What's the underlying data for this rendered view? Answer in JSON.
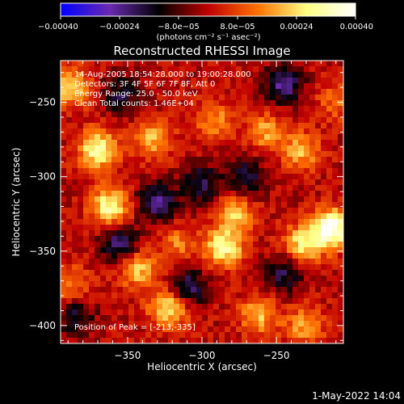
{
  "colorbar": {
    "ticks": [
      "−0.00040",
      "−0.00024",
      "−8.0e−05",
      "8.0e−05",
      "0.00024",
      "0.00040"
    ],
    "tick_values": [
      -0.0004,
      -0.00024,
      -8e-05,
      8e-05,
      0.00024,
      0.0004
    ],
    "range": [
      -0.0004,
      0.0004
    ],
    "unit_label": "(photons cm⁻² s⁻¹ asec⁻²)"
  },
  "chart_data": {
    "type": "heatmap",
    "title": "Reconstructed RHESSI Image",
    "xlabel": "Heliocentric X (arcsec)",
    "ylabel": "Heliocentric Y (arcsec)",
    "xlim": [
      -395,
      -205
    ],
    "ylim": [
      -412,
      -222
    ],
    "xticks": [
      -350,
      -300,
      -250
    ],
    "yticks": [
      -250,
      -300,
      -350,
      -400
    ],
    "xtick_labels": [
      "−350",
      "−300",
      "−250"
    ],
    "ytick_labels": [
      "−250",
      "−300",
      "−350",
      "−400"
    ],
    "annotations": [
      "14-Aug-2005 18:54:28.000  to 19:00:28.000",
      "Detectors: 3F 4F 5F 6F 7F 8F, Att 0",
      "Energy Range: 25.0 - 50.0 keV",
      "Clean     Total counts: 1.46E+04"
    ],
    "peak_text": "Position of Peak = [-213,-335]",
    "peak": [
      -213,
      -335
    ],
    "colormap_stops": [
      "#0000ff",
      "#6a2ab0",
      "#000000",
      "#c00000",
      "#ff7000",
      "#ffff80",
      "#ffffff"
    ],
    "sources": [
      {
        "x": -213,
        "y": -335,
        "v": 0.0004
      },
      {
        "x": -232,
        "y": -345,
        "v": 0.00026
      },
      {
        "x": -285,
        "y": -348,
        "v": 0.0003
      },
      {
        "x": -278,
        "y": -325,
        "v": 0.00022
      },
      {
        "x": -370,
        "y": -282,
        "v": 0.00032
      },
      {
        "x": -362,
        "y": -320,
        "v": 0.0003
      },
      {
        "x": -333,
        "y": -275,
        "v": 0.0002
      },
      {
        "x": -388,
        "y": -240,
        "v": 0.00024
      },
      {
        "x": -322,
        "y": -388,
        "v": 0.00028
      },
      {
        "x": -343,
        "y": -362,
        "v": 0.00022
      },
      {
        "x": -257,
        "y": -270,
        "v": 0.00018
      },
      {
        "x": -233,
        "y": -283,
        "v": 0.0002
      },
      {
        "x": -292,
        "y": -262,
        "v": 0.00016
      },
      {
        "x": -262,
        "y": -393,
        "v": 0.0002
      },
      {
        "x": -231,
        "y": -400,
        "v": 0.00018
      },
      {
        "x": -316,
        "y": -345,
        "v": 0.00014
      },
      {
        "x": -388,
        "y": -372,
        "v": 0.00014
      },
      {
        "x": -210,
        "y": -250,
        "v": 0.00012
      },
      {
        "x": -300,
        "y": -305,
        "v": -0.0002
      },
      {
        "x": -245,
        "y": -238,
        "v": -0.00024
      },
      {
        "x": -355,
        "y": -345,
        "v": -0.00022
      },
      {
        "x": -330,
        "y": -317,
        "v": -0.00024
      },
      {
        "x": -270,
        "y": -300,
        "v": -0.00018
      },
      {
        "x": -310,
        "y": -375,
        "v": -0.00022
      },
      {
        "x": -355,
        "y": -245,
        "v": -0.00016
      },
      {
        "x": -245,
        "y": -365,
        "v": -0.00018
      },
      {
        "x": -385,
        "y": -395,
        "v": -0.00016
      }
    ]
  },
  "timestamp": "1-May-2022 14:04"
}
